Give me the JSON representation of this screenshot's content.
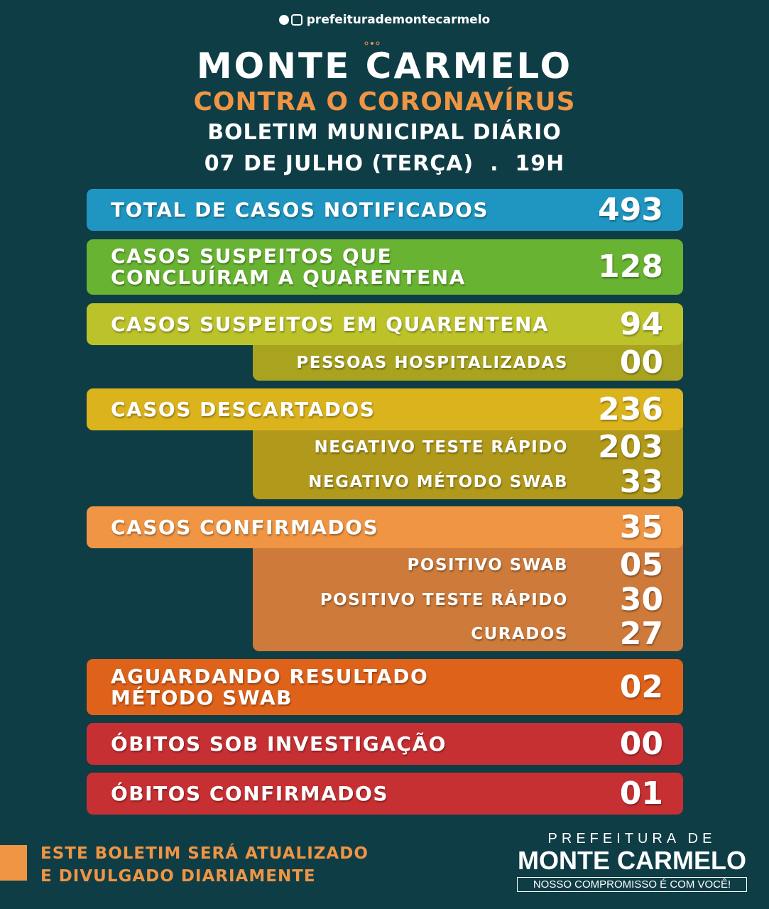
{
  "header": {
    "social": "prefeiturademontecarmelo",
    "title": "MONTE CARMELO",
    "subtitle": "CONTRA O CORONAVÍRUS",
    "bulletin": "BOLETIM MUNICIPAL DIÁRIO",
    "date": "07 DE JULHO (TERÇA)  .  19H"
  },
  "rows": [
    {
      "label": [
        "TOTAL DE CASOS NOTIFICADOS"
      ],
      "value": "493",
      "color": "#1f96c1"
    },
    {
      "label": [
        "CASOS SUSPEITOS QUE",
        "CONCLUÍRAM A QUARENTENA"
      ],
      "value": "128",
      "color": "#69b332"
    },
    {
      "label": [
        "CASOS SUSPEITOS EM QUARENTENA"
      ],
      "value": "94",
      "color": "#bcc22a",
      "detail_color": "#a8a41f",
      "details": [
        {
          "label": "PESSOAS HOSPITALIZADAS",
          "value": "00"
        }
      ]
    },
    {
      "label": [
        "CASOS DESCARTADOS"
      ],
      "value": "236",
      "color": "#dbb31c",
      "detail_color": "#b0991b",
      "details": [
        {
          "label": "NEGATIVO TESTE RÁPIDO",
          "value": "203"
        },
        {
          "label": "NEGATIVO MÉTODO SWAB",
          "value": "33"
        }
      ]
    },
    {
      "label": [
        "CASOS CONFIRMADOS"
      ],
      "value": "35",
      "color": "#ef9543",
      "detail_color": "#cd7a3a",
      "details": [
        {
          "label": "POSITIVO SWAB",
          "value": "05"
        },
        {
          "label": "POSITIVO TESTE RÁPIDO",
          "value": "30"
        },
        {
          "label": "CURADOS",
          "value": "27"
        }
      ]
    },
    {
      "label": [
        "AGUARDANDO RESULTADO",
        "MÉTODO SWAB"
      ],
      "value": "02",
      "color": "#df621a"
    },
    {
      "label": [
        "ÓBITOS SOB INVESTIGAÇÃO"
      ],
      "value": "00",
      "color": "#c73033"
    },
    {
      "label": [
        "ÓBITOS CONFIRMADOS"
      ],
      "value": "01",
      "color": "#c73033"
    }
  ],
  "footer": {
    "notice": [
      "ESTE BOLETIM SERÁ ATUALIZADO",
      "E DIVULGADO DIARIAMENTE"
    ],
    "logo": {
      "top": "PREFEITURA DE",
      "name": "MONTE CARMELO",
      "tagline": "NOSSO COMPROMISSO É COM VOCÊ!"
    }
  }
}
